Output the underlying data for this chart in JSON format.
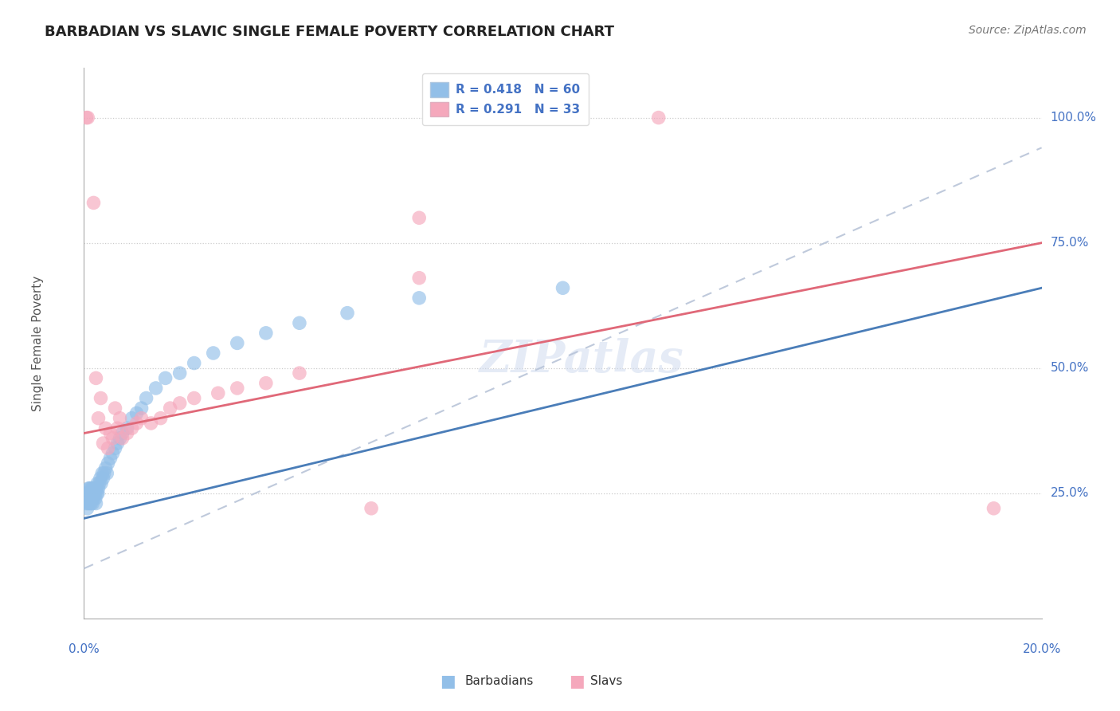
{
  "title": "BARBADIAN VS SLAVIC SINGLE FEMALE POVERTY CORRELATION CHART",
  "source": "Source: ZipAtlas.com",
  "ylabel": "Single Female Poverty",
  "xmin": 0.0,
  "xmax": 0.2,
  "ymin": 0.0,
  "ymax": 1.1,
  "ytick_vals": [
    0.25,
    0.5,
    0.75,
    1.0
  ],
  "ytick_labels": [
    "25.0%",
    "50.0%",
    "75.0%",
    "100.0%"
  ],
  "barbadian_color": "#92bfe8",
  "slavic_color": "#f5a8bc",
  "barbadian_line_color": "#4a7db8",
  "slavic_line_color": "#e06878",
  "trend_dash_color": "#aab8d8",
  "barbadian_x": [
    0.0005,
    0.0007,
    0.0008,
    0.0009,
    0.001,
    0.001,
    0.0011,
    0.0012,
    0.0012,
    0.0013,
    0.0014,
    0.0015,
    0.0015,
    0.0016,
    0.0017,
    0.0018,
    0.0018,
    0.0019,
    0.002,
    0.0021,
    0.0022,
    0.0023,
    0.0024,
    0.0025,
    0.0026,
    0.0027,
    0.0028,
    0.0029,
    0.003,
    0.0032,
    0.0034,
    0.0036,
    0.0038,
    0.004,
    0.0042,
    0.0045,
    0.0048,
    0.005,
    0.0055,
    0.006,
    0.0065,
    0.007,
    0.0075,
    0.008,
    0.009,
    0.01,
    0.011,
    0.012,
    0.013,
    0.015,
    0.017,
    0.02,
    0.023,
    0.027,
    0.032,
    0.038,
    0.045,
    0.055,
    0.07,
    0.1
  ],
  "barbadian_y": [
    0.23,
    0.22,
    0.25,
    0.23,
    0.26,
    0.24,
    0.25,
    0.23,
    0.26,
    0.25,
    0.24,
    0.23,
    0.26,
    0.25,
    0.24,
    0.23,
    0.26,
    0.25,
    0.24,
    0.25,
    0.26,
    0.25,
    0.24,
    0.23,
    0.26,
    0.25,
    0.27,
    0.25,
    0.26,
    0.27,
    0.28,
    0.27,
    0.29,
    0.28,
    0.29,
    0.3,
    0.29,
    0.31,
    0.32,
    0.33,
    0.34,
    0.35,
    0.36,
    0.37,
    0.38,
    0.4,
    0.41,
    0.42,
    0.44,
    0.46,
    0.48,
    0.49,
    0.51,
    0.53,
    0.55,
    0.57,
    0.59,
    0.61,
    0.64,
    0.66
  ],
  "slavic_x": [
    0.0005,
    0.0008,
    0.002,
    0.0025,
    0.003,
    0.0035,
    0.004,
    0.0045,
    0.005,
    0.0055,
    0.006,
    0.0065,
    0.007,
    0.0075,
    0.008,
    0.009,
    0.01,
    0.011,
    0.012,
    0.014,
    0.016,
    0.018,
    0.02,
    0.023,
    0.028,
    0.032,
    0.038,
    0.045,
    0.07,
    0.12,
    0.06,
    0.19,
    0.07
  ],
  "slavic_y": [
    1.0,
    1.0,
    0.83,
    0.48,
    0.4,
    0.44,
    0.35,
    0.38,
    0.34,
    0.37,
    0.36,
    0.42,
    0.38,
    0.4,
    0.36,
    0.37,
    0.38,
    0.39,
    0.4,
    0.39,
    0.4,
    0.42,
    0.43,
    0.44,
    0.45,
    0.46,
    0.47,
    0.49,
    0.8,
    1.0,
    0.22,
    0.22,
    0.68
  ],
  "barbadian_trend": {
    "intercept": 0.2,
    "slope": 2.3
  },
  "slavic_trend": {
    "intercept": 0.37,
    "slope": 1.9
  },
  "barbadian_dashed_trend": {
    "intercept": 0.1,
    "slope": 4.2
  }
}
